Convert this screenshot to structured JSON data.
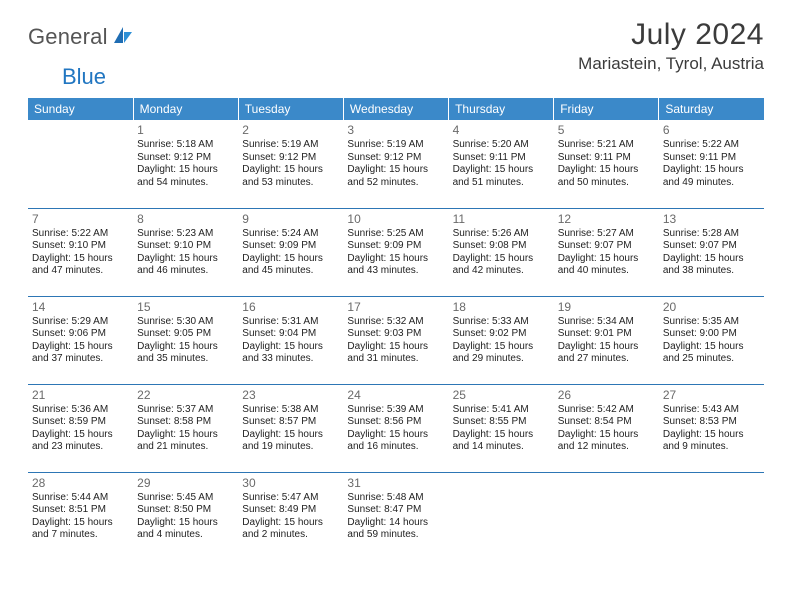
{
  "brand": {
    "general": "General",
    "blue": "Blue"
  },
  "title": "July 2024",
  "location": "Mariastein, Tyrol, Austria",
  "header_bg": "#3b89c9",
  "header_fg": "#ffffff",
  "divider_color": "#2d76b5",
  "daynum_color": "#6a6a6a",
  "text_color": "#222222",
  "brand_gray": "#555555",
  "brand_blue": "#2176c1",
  "days_of_week": [
    "Sunday",
    "Monday",
    "Tuesday",
    "Wednesday",
    "Thursday",
    "Friday",
    "Saturday"
  ],
  "weeks": [
    [
      null,
      {
        "n": "1",
        "sr": "Sunrise: 5:18 AM",
        "ss": "Sunset: 9:12 PM",
        "d1": "Daylight: 15 hours",
        "d2": "and 54 minutes."
      },
      {
        "n": "2",
        "sr": "Sunrise: 5:19 AM",
        "ss": "Sunset: 9:12 PM",
        "d1": "Daylight: 15 hours",
        "d2": "and 53 minutes."
      },
      {
        "n": "3",
        "sr": "Sunrise: 5:19 AM",
        "ss": "Sunset: 9:12 PM",
        "d1": "Daylight: 15 hours",
        "d2": "and 52 minutes."
      },
      {
        "n": "4",
        "sr": "Sunrise: 5:20 AM",
        "ss": "Sunset: 9:11 PM",
        "d1": "Daylight: 15 hours",
        "d2": "and 51 minutes."
      },
      {
        "n": "5",
        "sr": "Sunrise: 5:21 AM",
        "ss": "Sunset: 9:11 PM",
        "d1": "Daylight: 15 hours",
        "d2": "and 50 minutes."
      },
      {
        "n": "6",
        "sr": "Sunrise: 5:22 AM",
        "ss": "Sunset: 9:11 PM",
        "d1": "Daylight: 15 hours",
        "d2": "and 49 minutes."
      }
    ],
    [
      {
        "n": "7",
        "sr": "Sunrise: 5:22 AM",
        "ss": "Sunset: 9:10 PM",
        "d1": "Daylight: 15 hours",
        "d2": "and 47 minutes."
      },
      {
        "n": "8",
        "sr": "Sunrise: 5:23 AM",
        "ss": "Sunset: 9:10 PM",
        "d1": "Daylight: 15 hours",
        "d2": "and 46 minutes."
      },
      {
        "n": "9",
        "sr": "Sunrise: 5:24 AM",
        "ss": "Sunset: 9:09 PM",
        "d1": "Daylight: 15 hours",
        "d2": "and 45 minutes."
      },
      {
        "n": "10",
        "sr": "Sunrise: 5:25 AM",
        "ss": "Sunset: 9:09 PM",
        "d1": "Daylight: 15 hours",
        "d2": "and 43 minutes."
      },
      {
        "n": "11",
        "sr": "Sunrise: 5:26 AM",
        "ss": "Sunset: 9:08 PM",
        "d1": "Daylight: 15 hours",
        "d2": "and 42 minutes."
      },
      {
        "n": "12",
        "sr": "Sunrise: 5:27 AM",
        "ss": "Sunset: 9:07 PM",
        "d1": "Daylight: 15 hours",
        "d2": "and 40 minutes."
      },
      {
        "n": "13",
        "sr": "Sunrise: 5:28 AM",
        "ss": "Sunset: 9:07 PM",
        "d1": "Daylight: 15 hours",
        "d2": "and 38 minutes."
      }
    ],
    [
      {
        "n": "14",
        "sr": "Sunrise: 5:29 AM",
        "ss": "Sunset: 9:06 PM",
        "d1": "Daylight: 15 hours",
        "d2": "and 37 minutes."
      },
      {
        "n": "15",
        "sr": "Sunrise: 5:30 AM",
        "ss": "Sunset: 9:05 PM",
        "d1": "Daylight: 15 hours",
        "d2": "and 35 minutes."
      },
      {
        "n": "16",
        "sr": "Sunrise: 5:31 AM",
        "ss": "Sunset: 9:04 PM",
        "d1": "Daylight: 15 hours",
        "d2": "and 33 minutes."
      },
      {
        "n": "17",
        "sr": "Sunrise: 5:32 AM",
        "ss": "Sunset: 9:03 PM",
        "d1": "Daylight: 15 hours",
        "d2": "and 31 minutes."
      },
      {
        "n": "18",
        "sr": "Sunrise: 5:33 AM",
        "ss": "Sunset: 9:02 PM",
        "d1": "Daylight: 15 hours",
        "d2": "and 29 minutes."
      },
      {
        "n": "19",
        "sr": "Sunrise: 5:34 AM",
        "ss": "Sunset: 9:01 PM",
        "d1": "Daylight: 15 hours",
        "d2": "and 27 minutes."
      },
      {
        "n": "20",
        "sr": "Sunrise: 5:35 AM",
        "ss": "Sunset: 9:00 PM",
        "d1": "Daylight: 15 hours",
        "d2": "and 25 minutes."
      }
    ],
    [
      {
        "n": "21",
        "sr": "Sunrise: 5:36 AM",
        "ss": "Sunset: 8:59 PM",
        "d1": "Daylight: 15 hours",
        "d2": "and 23 minutes."
      },
      {
        "n": "22",
        "sr": "Sunrise: 5:37 AM",
        "ss": "Sunset: 8:58 PM",
        "d1": "Daylight: 15 hours",
        "d2": "and 21 minutes."
      },
      {
        "n": "23",
        "sr": "Sunrise: 5:38 AM",
        "ss": "Sunset: 8:57 PM",
        "d1": "Daylight: 15 hours",
        "d2": "and 19 minutes."
      },
      {
        "n": "24",
        "sr": "Sunrise: 5:39 AM",
        "ss": "Sunset: 8:56 PM",
        "d1": "Daylight: 15 hours",
        "d2": "and 16 minutes."
      },
      {
        "n": "25",
        "sr": "Sunrise: 5:41 AM",
        "ss": "Sunset: 8:55 PM",
        "d1": "Daylight: 15 hours",
        "d2": "and 14 minutes."
      },
      {
        "n": "26",
        "sr": "Sunrise: 5:42 AM",
        "ss": "Sunset: 8:54 PM",
        "d1": "Daylight: 15 hours",
        "d2": "and 12 minutes."
      },
      {
        "n": "27",
        "sr": "Sunrise: 5:43 AM",
        "ss": "Sunset: 8:53 PM",
        "d1": "Daylight: 15 hours",
        "d2": "and 9 minutes."
      }
    ],
    [
      {
        "n": "28",
        "sr": "Sunrise: 5:44 AM",
        "ss": "Sunset: 8:51 PM",
        "d1": "Daylight: 15 hours",
        "d2": "and 7 minutes."
      },
      {
        "n": "29",
        "sr": "Sunrise: 5:45 AM",
        "ss": "Sunset: 8:50 PM",
        "d1": "Daylight: 15 hours",
        "d2": "and 4 minutes."
      },
      {
        "n": "30",
        "sr": "Sunrise: 5:47 AM",
        "ss": "Sunset: 8:49 PM",
        "d1": "Daylight: 15 hours",
        "d2": "and 2 minutes."
      },
      {
        "n": "31",
        "sr": "Sunrise: 5:48 AM",
        "ss": "Sunset: 8:47 PM",
        "d1": "Daylight: 14 hours",
        "d2": "and 59 minutes."
      },
      null,
      null,
      null
    ]
  ]
}
